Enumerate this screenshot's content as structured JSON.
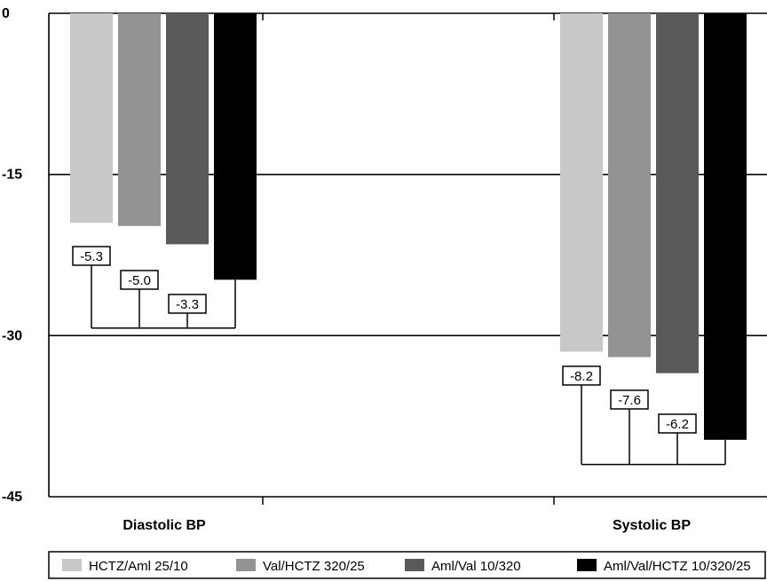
{
  "chart_data": {
    "type": "bar",
    "categories": [
      "Diastolic BP",
      "Systolic BP"
    ],
    "series": [
      {
        "name": "HCTZ/Aml 25/10",
        "color": "#c8c8c8",
        "values": [
          -19.5,
          -31.5
        ]
      },
      {
        "name": "Val/HCTZ 320/25",
        "color": "#939393",
        "values": [
          -19.8,
          -32.0
        ]
      },
      {
        "name": "Aml/Val 10/320",
        "color": "#5a5a5a",
        "values": [
          -21.5,
          -33.5
        ]
      },
      {
        "name": "Aml/Val/HCTZ 10/320/25",
        "color": "#000000",
        "values": [
          -24.8,
          -39.7
        ]
      }
    ],
    "ylim": [
      -45,
      0
    ],
    "yticks": [
      0,
      -15,
      -30,
      -45
    ],
    "ytick_labels": [
      "0",
      "-15",
      "-30",
      "-45"
    ],
    "grid": true,
    "legend_position": "bottom",
    "xlabel": "",
    "ylabel": "",
    "title": "",
    "differences": [
      {
        "category": "Diastolic BP",
        "labels": [
          "-5.3",
          "-5.0",
          "-3.3"
        ],
        "from_series": [
          0,
          1,
          2
        ],
        "to_series": 3,
        "bracket_level": -29.3
      },
      {
        "category": "Systolic BP",
        "labels": [
          "-8.2",
          "-7.6",
          "-6.2"
        ],
        "from_series": [
          0,
          1,
          2
        ],
        "to_series": 3,
        "bracket_level": -42.0
      }
    ]
  }
}
